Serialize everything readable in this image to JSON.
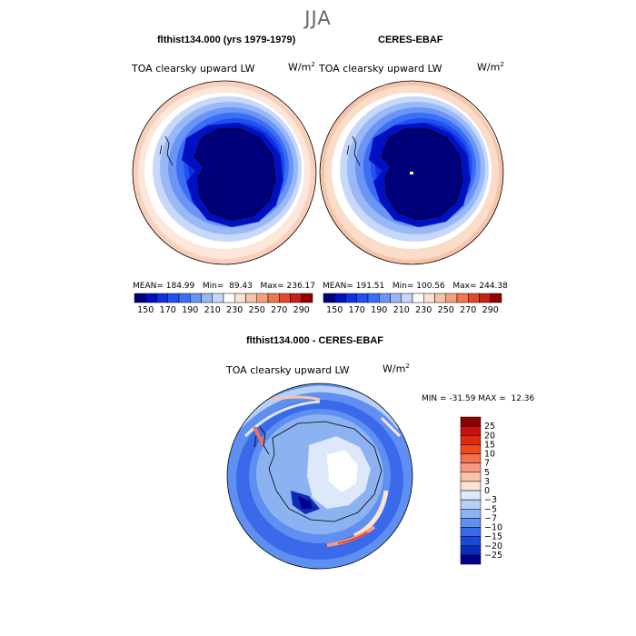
{
  "figure": {
    "season": "JJA"
  },
  "panels": {
    "left": {
      "title": "flthist134.000 (yrs 1979-1979)",
      "variable": "TOA clearsky upward LW",
      "units_base": "W/m",
      "units_exp": "2",
      "mean_label": "MEAN=",
      "mean": "184.99",
      "min_label": "Min=",
      "min": "89.43",
      "max_label": "Max=",
      "max": "236.17"
    },
    "right": {
      "title": "CERES-EBAF",
      "variable": "TOA clearsky upward LW",
      "units_base": "W/m",
      "units_exp": "2",
      "mean_label": "MEAN=",
      "mean": "191.51",
      "min_label": "Min=",
      "min": "100.56",
      "max_label": "Max=",
      "max": "244.38"
    },
    "diff": {
      "title": "flthist134.000 - CERES-EBAF",
      "variable": "TOA clearsky upward LW",
      "units_base": "W/m",
      "units_exp": "2",
      "minmax_text": "MIN = -31.59 MAX =  12.36"
    }
  },
  "chart_data": [
    {
      "type": "heatmap",
      "projection": "south-polar-stereographic",
      "title": "flthist134.000 (yrs 1979-1979)",
      "colorbar": {
        "levels": [
          150,
          160,
          170,
          180,
          190,
          200,
          210,
          220,
          230,
          240,
          250,
          260,
          270,
          280,
          290
        ],
        "tick_labels": [
          "150",
          "170",
          "190",
          "210",
          "230",
          "250",
          "270",
          "290"
        ],
        "colors": [
          "#00007a",
          "#0010c0",
          "#1030e0",
          "#2050f0",
          "#3a6ef5",
          "#6a94f5",
          "#98b8f6",
          "#c8d8fa",
          "#ffffff",
          "#fbe2d2",
          "#f7c4a8",
          "#f4a07c",
          "#ee7650",
          "#e04a2a",
          "#c02410",
          "#900000"
        ]
      },
      "stats": {
        "mean": 184.99,
        "min": 89.43,
        "max": 236.17
      }
    },
    {
      "type": "heatmap",
      "projection": "south-polar-stereographic",
      "title": "CERES-EBAF",
      "colorbar": {
        "levels": [
          150,
          160,
          170,
          180,
          190,
          200,
          210,
          220,
          230,
          240,
          250,
          260,
          270,
          280,
          290
        ],
        "tick_labels": [
          "150",
          "170",
          "190",
          "210",
          "230",
          "250",
          "270",
          "290"
        ],
        "colors": [
          "#00007a",
          "#0010c0",
          "#1030e0",
          "#2050f0",
          "#3a6ef5",
          "#6a94f5",
          "#98b8f6",
          "#c8d8fa",
          "#ffffff",
          "#fbe2d2",
          "#f7c4a8",
          "#f4a07c",
          "#ee7650",
          "#e04a2a",
          "#c02410",
          "#900000"
        ]
      },
      "stats": {
        "mean": 191.51,
        "min": 100.56,
        "max": 244.38
      }
    },
    {
      "type": "heatmap",
      "projection": "south-polar-stereographic",
      "title": "flthist134.000 - CERES-EBAF",
      "colorbar": {
        "levels": [
          -25,
          -20,
          -15,
          -10,
          -7,
          -5,
          -3,
          0,
          3,
          5,
          7,
          10,
          15,
          20,
          25
        ],
        "tick_labels": [
          "25",
          "20",
          "15",
          "10",
          "7",
          "5",
          "3",
          "0",
          "−3",
          "−5",
          "−7",
          "−10",
          "−15",
          "−20",
          "−25"
        ],
        "colors": [
          "#8b0000",
          "#c81010",
          "#e02a10",
          "#f04a1a",
          "#f47050",
          "#f79a80",
          "#f9c4aa",
          "#fde4d2",
          "#dde8fa",
          "#b8cff7",
          "#8db2f2",
          "#5f8ff0",
          "#3a6aea",
          "#1a48d8",
          "#0c2cb8",
          "#00008a"
        ]
      },
      "stats": {
        "min": -31.59,
        "max": 12.36
      }
    }
  ]
}
